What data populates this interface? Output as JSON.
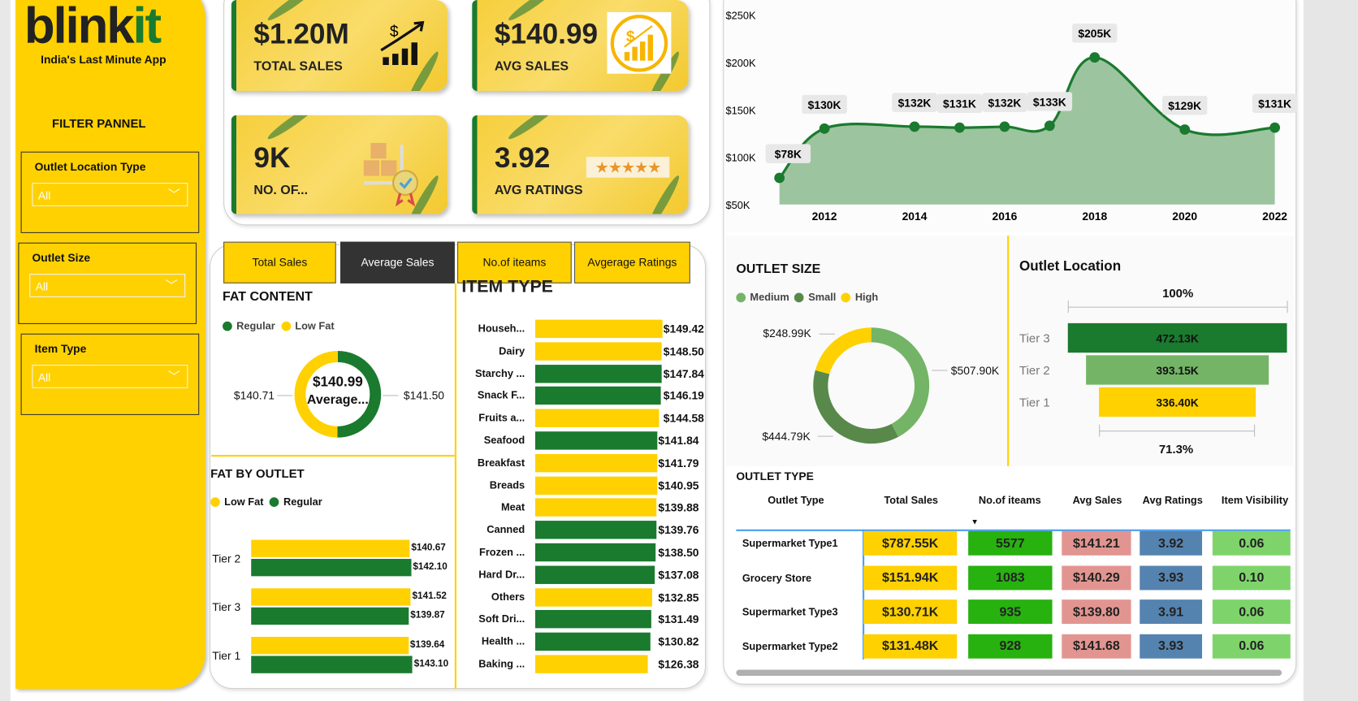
{
  "brand": {
    "logo_main": "blink",
    "logo_accent": "it",
    "tagline": "India's Last Minute App"
  },
  "filters": {
    "title": "FILTER PANNEL",
    "items": [
      {
        "label": "Outlet Location Type",
        "value": "All"
      },
      {
        "label": "Outlet Size",
        "value": "All"
      },
      {
        "label": "Item Type",
        "value": "All"
      }
    ]
  },
  "kpis": [
    {
      "value": "$1.20M",
      "label": "TOTAL SALES",
      "icon": "sales-growth-icon"
    },
    {
      "value": "$140.99",
      "label": "AVG SALES",
      "icon": "dollar-chart-icon"
    },
    {
      "value": "9K",
      "label": "NO. OF...",
      "icon": "boxes-trolley-icon"
    },
    {
      "value": "3.92",
      "label": "AVG RATINGS",
      "icon": "five-stars-icon"
    }
  ],
  "tabs": {
    "items": [
      "Total Sales",
      "Average Sales",
      "No.of iteams",
      "Avgerage Ratings"
    ],
    "active": "Average Sales"
  },
  "colors": {
    "green": "#1a7a2e",
    "yellow": "#ffd100",
    "area": "#9cc59f",
    "medium": "#74b466",
    "small": "#58894b",
    "high": "#ffd100"
  },
  "chart_data": [
    {
      "type": "area",
      "x": [
        2011,
        2012,
        2014,
        2015,
        2016,
        2017,
        2018,
        2020,
        2022
      ],
      "y": [
        78,
        130,
        132,
        131,
        132,
        133,
        205,
        129,
        131
      ],
      "labels": [
        "$78K",
        "$130K",
        "$132K",
        "$131K",
        "$132K",
        "$133K",
        "$205K",
        "$129K",
        "$131K"
      ],
      "yunit": "K",
      "ylim": [
        50,
        250
      ],
      "yticks": [
        "$50K",
        "$100K",
        "$150K",
        "$200K",
        "$250K"
      ],
      "xticks": [
        "2012",
        "2014",
        "2016",
        "2018",
        "2020",
        "2022"
      ],
      "grid": false
    },
    {
      "type": "pie",
      "title": "FAT CONTENT",
      "center_value": "$140.99",
      "center_label": "Average...",
      "legend": [
        "Regular",
        "Low Fat"
      ],
      "slices": [
        {
          "name": "Regular",
          "value": 141.5,
          "label": "$141.50",
          "color": "#1a7a2e"
        },
        {
          "name": "Low Fat",
          "value": 140.71,
          "label": "$140.71",
          "color": "#ffd100"
        }
      ],
      "legend_position": "top-left"
    },
    {
      "type": "bar",
      "title": "FAT BY OUTLET",
      "orientation": "horizontal",
      "legend": [
        "Low Fat",
        "Regular"
      ],
      "categories": [
        "Tier 2",
        "Tier 3",
        "Tier 1"
      ],
      "series": [
        {
          "name": "Low Fat",
          "values": [
            140.67,
            141.52,
            139.64
          ],
          "labels": [
            "$140.67",
            "$141.52",
            "$139.64"
          ],
          "color": "#ffd100"
        },
        {
          "name": "Regular",
          "values": [
            142.1,
            139.87,
            143.1
          ],
          "labels": [
            "$142.10",
            "$139.87",
            "$143.10"
          ],
          "color": "#1a7a2e"
        }
      ]
    },
    {
      "type": "bar",
      "title": "ITEM TYPE",
      "orientation": "horizontal",
      "categories": [
        "Househ...",
        "Dairy",
        "Starchy ...",
        "Snack F...",
        "Fruits a...",
        "Seafood",
        "Breakfast",
        "Breads",
        "Meat",
        "Canned",
        "Frozen ...",
        "Hard Dr...",
        "Others",
        "Soft Dri...",
        "Health ...",
        "Baking ..."
      ],
      "values": [
        149.42,
        148.5,
        147.84,
        146.19,
        144.58,
        141.84,
        141.79,
        140.95,
        139.88,
        139.76,
        138.5,
        137.08,
        132.85,
        131.49,
        130.82,
        126.38
      ],
      "labels": [
        "$149.42",
        "$148.50",
        "$147.84",
        "$146.19",
        "$144.58",
        "$141.84",
        "$141.79",
        "$140.95",
        "$139.88",
        "$139.76",
        "$138.50",
        "$137.08",
        "$132.85",
        "$131.49",
        "$130.82",
        "$126.38"
      ],
      "bar_colors": [
        "#ffd100",
        "#ffd100",
        "#1a7a2e",
        "#1a7a2e",
        "#ffd100",
        "#1a7a2e",
        "#ffd100",
        "#ffd100",
        "#ffd100",
        "#1a7a2e",
        "#1a7a2e",
        "#1a7a2e",
        "#ffd100",
        "#1a7a2e",
        "#1a7a2e",
        "#ffd100"
      ]
    },
    {
      "type": "pie",
      "title": "OUTLET SIZE",
      "legend": [
        "Medium",
        "Small",
        "High"
      ],
      "slices": [
        {
          "name": "Medium",
          "value": 507.9,
          "label": "$507.90K",
          "color": "#74b466"
        },
        {
          "name": "Small",
          "value": 444.79,
          "label": "$444.79K",
          "color": "#58894b"
        },
        {
          "name": "High",
          "value": 248.99,
          "label": "$248.99K",
          "color": "#ffd100"
        }
      ],
      "legend_position": "top-left"
    },
    {
      "type": "bar",
      "subtype": "funnel",
      "title": "Outlet Location",
      "top_label": "100%",
      "bottom_label": "71.3%",
      "categories": [
        "Tier 3",
        "Tier 2",
        "Tier 1"
      ],
      "values": [
        472.13,
        393.15,
        336.4
      ],
      "labels": [
        "472.13K",
        "393.15K",
        "336.40K"
      ],
      "bar_colors": [
        "#1a7a2e",
        "#74b466",
        "#ffd100"
      ]
    }
  ],
  "outlet_type": {
    "title": "OUTLET TYPE",
    "columns": [
      "Outlet Type",
      "Total Sales",
      "No.of iteams",
      "Avg Sales",
      "Avg Ratings",
      "Item Visibility"
    ],
    "sorted_column": "No.of iteams",
    "sort": "descending",
    "cell_colors": [
      "#ffd100",
      "#27b20f",
      "#e29590",
      "#5583af",
      "#7ed46b"
    ],
    "rows": [
      [
        "Supermarket Type1",
        "$787.55K",
        "5577",
        "$141.21",
        "3.92",
        "0.06"
      ],
      [
        "Grocery Store",
        "$151.94K",
        "1083",
        "$140.29",
        "3.93",
        "0.10"
      ],
      [
        "Supermarket Type3",
        "$130.71K",
        "935",
        "$139.80",
        "3.91",
        "0.06"
      ],
      [
        "Supermarket Type2",
        "$131.48K",
        "928",
        "$141.68",
        "3.93",
        "0.06"
      ]
    ]
  }
}
